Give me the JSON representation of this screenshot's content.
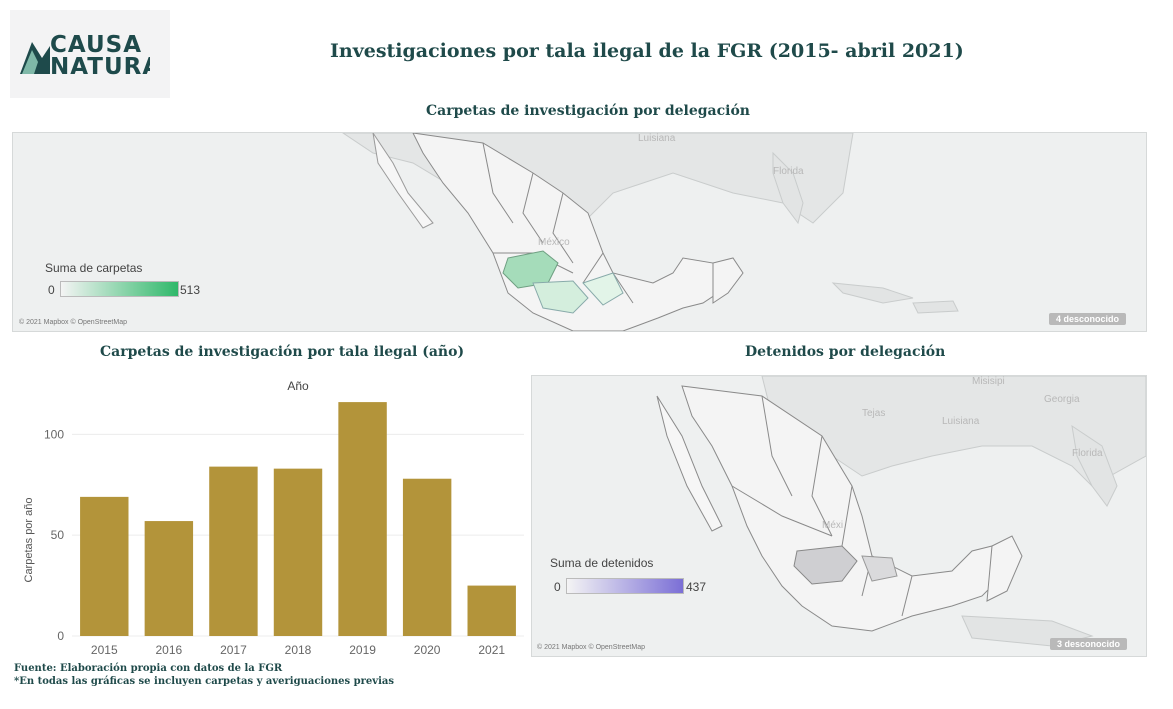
{
  "logo": {
    "line1": "CAUSA",
    "line2": "NATURA"
  },
  "main_title": "Investigaciones por tala ilegal de la FGR (2015- abril 2021)",
  "map_top": {
    "title": "Carpetas de investigación por delegación",
    "legend_title": "Suma de carpetas",
    "legend_min": "0",
    "legend_max": "513",
    "legend_color": "#2fb86a",
    "labels": {
      "luisiana": "Luisiana",
      "florida": "Florida",
      "mexico": "México"
    },
    "credit": "© 2021 Mapbox © OpenStreetMap",
    "unknown": "4 desconocido"
  },
  "map_bottom": {
    "title": "Detenidos por delegación",
    "legend_title": "Suma de detenidos",
    "legend_min": "0",
    "legend_max": "437",
    "legend_color": "#7b6fd6",
    "labels": {
      "misisipi": "Misisipi",
      "georgia": "Georgia",
      "tejas": "Tejas",
      "luisiana": "Luisiana",
      "florida": "Florida",
      "mexico": "Méxi"
    },
    "credit": "© 2021 Mapbox © OpenStreetMap",
    "unknown": "3 desconocido"
  },
  "chart_data": {
    "type": "bar",
    "title": "Carpetas de investigación por tala ilegal (año)",
    "subtitle": "Año",
    "xlabel": "",
    "ylabel": "Carpetas por año",
    "categories": [
      "2015",
      "2016",
      "2017",
      "2018",
      "2019",
      "2020",
      "2021"
    ],
    "values": [
      69,
      57,
      84,
      83,
      116,
      78,
      25
    ],
    "ylim": [
      0,
      122
    ],
    "yticks": [
      0,
      50,
      100
    ],
    "color": "#b3943a",
    "grid": true
  },
  "footer": {
    "line1": "Fuente: Elaboración propia con datos de la FGR",
    "line2": "*En todas las gráficas se incluyen carpetas y averiguaciones previas"
  }
}
